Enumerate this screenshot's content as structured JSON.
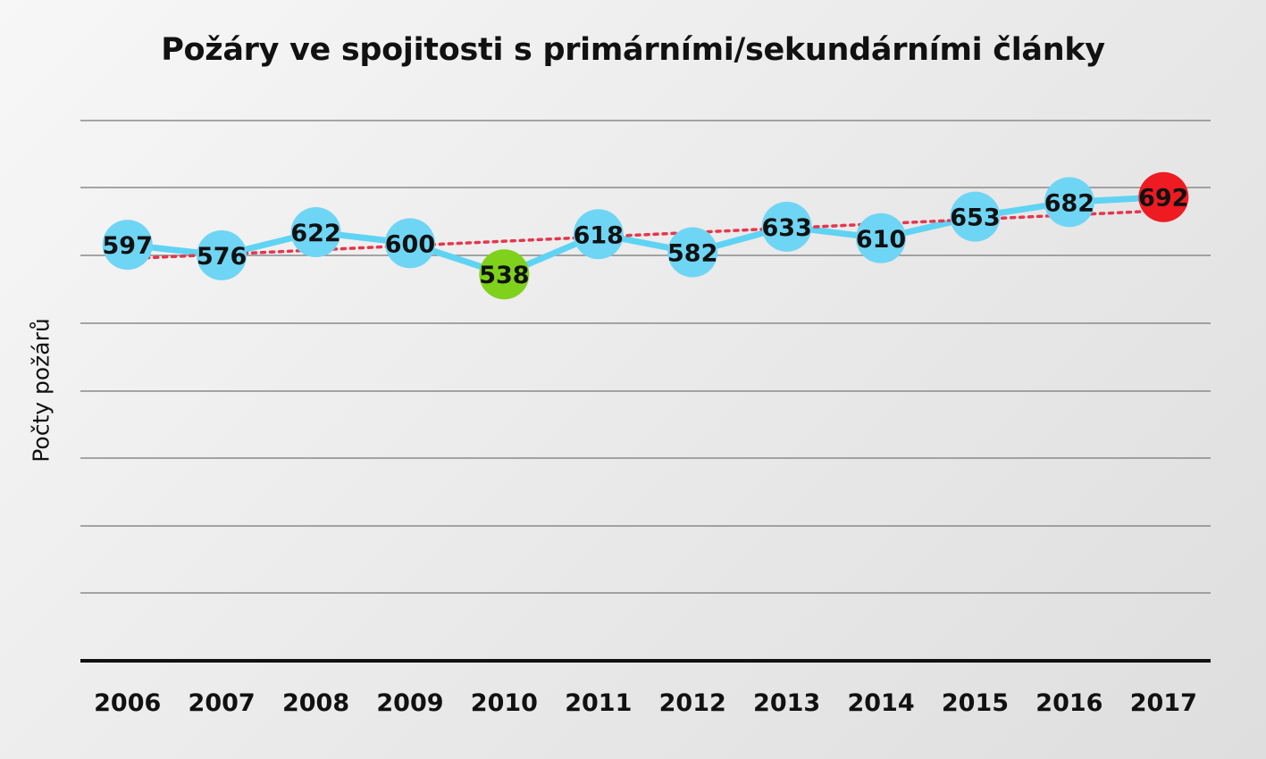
{
  "chart_data": {
    "type": "line",
    "title": "Požáry ve spojitosti s primárními/sekundárními články",
    "xlabel": "",
    "ylabel": "Počty požárů",
    "categories": [
      "2006",
      "2007",
      "2008",
      "2009",
      "2010",
      "2011",
      "2012",
      "2013",
      "2014",
      "2015",
      "2016",
      "2017"
    ],
    "series": [
      {
        "values": [
          597,
          576,
          622,
          600,
          538,
          618,
          582,
          633,
          610,
          653,
          682,
          692
        ]
      }
    ],
    "trendline": {
      "style": "dotted",
      "color": "#e8354c",
      "from": 570,
      "to": 665
    },
    "highlights": {
      "min_index": 4,
      "max_index": 11
    },
    "colors": {
      "line": "#5fd3f3",
      "marker": "#6fd5f5",
      "min_marker": "#7fd11c",
      "max_marker": "#ee1b22",
      "grid": "#8a8a8a",
      "axis": "#111111"
    },
    "grid": true,
    "legend": "none"
  }
}
